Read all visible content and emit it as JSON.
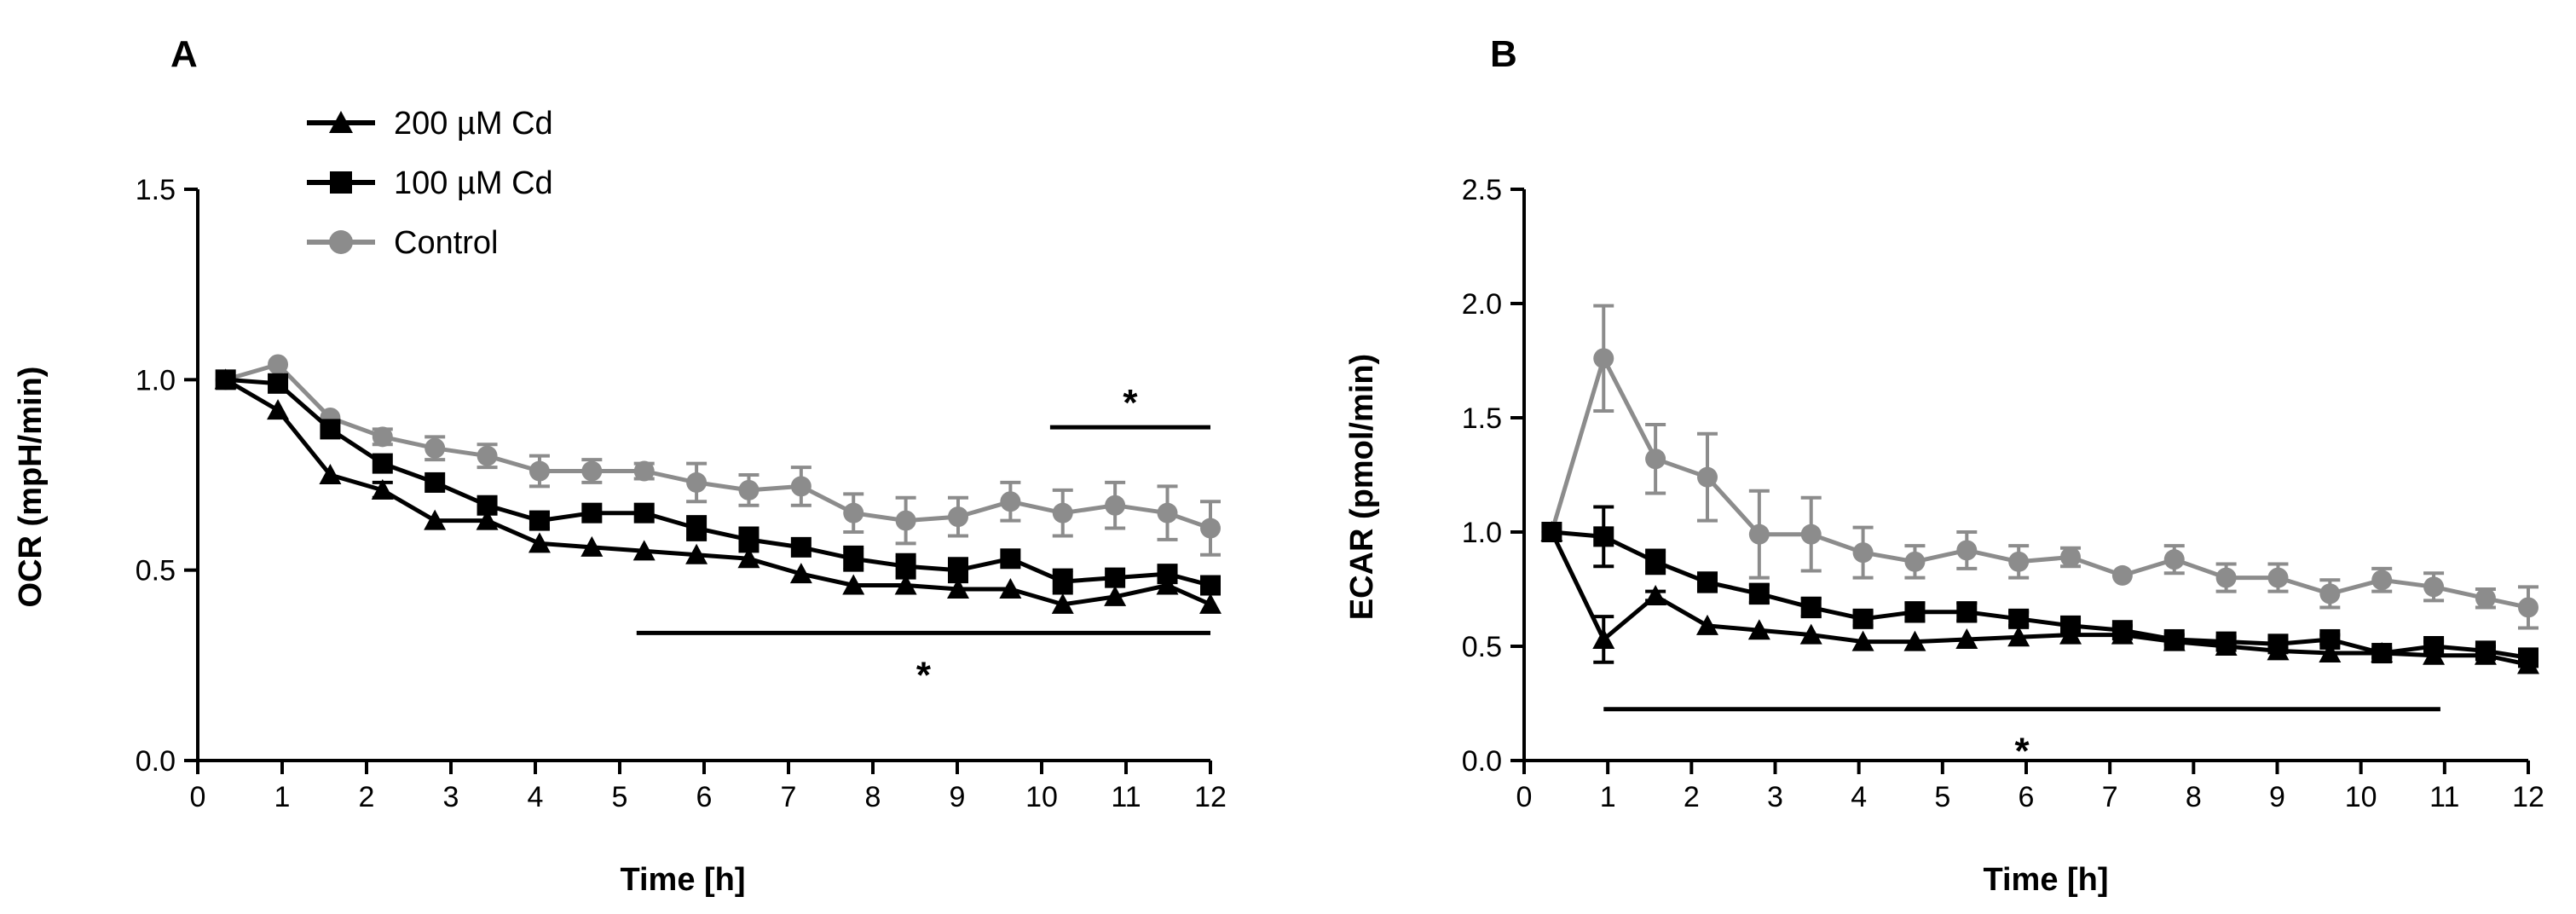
{
  "colors": {
    "cd200": "#000000",
    "cd100": "#000000",
    "control": "#8c8c8c"
  },
  "legend": [
    {
      "label": "200 µM Cd",
      "series": "cd200",
      "marker": "triangle"
    },
    {
      "label": "100 µM Cd",
      "series": "cd100",
      "marker": "square"
    },
    {
      "label": "Control",
      "series": "control",
      "marker": "circle"
    }
  ],
  "chart_data": [
    {
      "type": "line",
      "panel": "A",
      "title": "",
      "xlabel": "Time [h]",
      "ylabel": "OCR (mpH/min)",
      "xlim": [
        0,
        12
      ],
      "ylim": [
        0,
        1.5
      ],
      "xticks": [
        "0",
        "1",
        "2",
        "3",
        "4",
        "5",
        "6",
        "7",
        "8",
        "9",
        "10",
        "11",
        "12"
      ],
      "yticks": [
        "0.0",
        "0.5",
        "1.0",
        "1.5"
      ],
      "x": [
        0.33,
        0.95,
        1.57,
        2.19,
        2.81,
        3.43,
        4.05,
        4.67,
        5.29,
        5.91,
        6.53,
        7.15,
        7.77,
        8.39,
        9.01,
        9.63,
        10.25,
        10.87,
        11.49,
        12.0
      ],
      "series": [
        {
          "name": "200 µM Cd",
          "key": "cd200",
          "values": [
            1.0,
            0.92,
            0.75,
            0.71,
            0.63,
            0.63,
            0.57,
            0.56,
            0.55,
            0.54,
            0.53,
            0.49,
            0.46,
            0.46,
            0.45,
            0.45,
            0.41,
            0.43,
            0.46,
            0.41
          ],
          "errors": [
            0,
            0.01,
            0.01,
            0.02,
            0.01,
            0.01,
            0.01,
            0.01,
            0.01,
            0.01,
            0.01,
            0.01,
            0.01,
            0.01,
            0.01,
            0.01,
            0.01,
            0.01,
            0.01,
            0.01
          ]
        },
        {
          "name": "100 µM Cd",
          "key": "cd100",
          "values": [
            1.0,
            0.99,
            0.87,
            0.78,
            0.73,
            0.67,
            0.63,
            0.65,
            0.65,
            0.61,
            0.58,
            0.56,
            0.53,
            0.51,
            0.5,
            0.53,
            0.47,
            0.48,
            0.49,
            0.46
          ],
          "errors": [
            0,
            0.01,
            0.01,
            0.01,
            0.01,
            0.01,
            0.02,
            0.01,
            0.01,
            0.03,
            0.03,
            0.01,
            0.03,
            0.03,
            0.03,
            0.01,
            0.03,
            0.01,
            0.01,
            0.01
          ]
        },
        {
          "name": "Control",
          "key": "control",
          "values": [
            1.0,
            1.04,
            0.9,
            0.85,
            0.82,
            0.8,
            0.76,
            0.76,
            0.76,
            0.73,
            0.71,
            0.72,
            0.65,
            0.63,
            0.64,
            0.68,
            0.65,
            0.67,
            0.65,
            0.61
          ],
          "errors": [
            0,
            0.01,
            0.01,
            0.02,
            0.03,
            0.03,
            0.04,
            0.03,
            0.02,
            0.05,
            0.04,
            0.05,
            0.05,
            0.06,
            0.05,
            0.05,
            0.06,
            0.06,
            0.07,
            0.07
          ]
        }
      ],
      "significance": [
        {
          "label": "*",
          "x1": 10.1,
          "x2": 12.0,
          "y": 0.875
        },
        {
          "label": "*",
          "x1": 5.2,
          "x2": 12.0,
          "y": 0.335
        }
      ]
    },
    {
      "type": "line",
      "panel": "B",
      "title": "",
      "xlabel": "Time [h]",
      "ylabel": "ECAR (pmol/min)",
      "xlim": [
        0,
        12
      ],
      "ylim": [
        0,
        2.5
      ],
      "xticks": [
        "0",
        "1",
        "2",
        "3",
        "4",
        "5",
        "6",
        "7",
        "8",
        "9",
        "10",
        "11",
        "12"
      ],
      "yticks": [
        "0.0",
        "0.5",
        "1.0",
        "1.5",
        "2.0",
        "2.5"
      ],
      "x": [
        0.33,
        0.95,
        1.57,
        2.19,
        2.81,
        3.43,
        4.05,
        4.67,
        5.29,
        5.91,
        6.53,
        7.15,
        7.77,
        8.39,
        9.01,
        9.63,
        10.25,
        10.87,
        11.49,
        12.0
      ],
      "series": [
        {
          "name": "200 µM Cd",
          "key": "cd200",
          "values": [
            1.0,
            0.53,
            0.72,
            0.59,
            0.57,
            0.55,
            0.52,
            0.52,
            0.53,
            0.54,
            0.55,
            0.55,
            0.52,
            0.5,
            0.48,
            0.47,
            0.47,
            0.46,
            0.46,
            0.42
          ],
          "errors": [
            0,
            0.1,
            0.02,
            0.01,
            0.01,
            0.01,
            0.01,
            0.01,
            0.01,
            0.01,
            0.01,
            0.01,
            0.01,
            0.01,
            0.01,
            0.01,
            0.01,
            0.01,
            0.01,
            0.01
          ]
        },
        {
          "name": "100 µM Cd",
          "key": "cd100",
          "values": [
            1.0,
            0.98,
            0.87,
            0.78,
            0.73,
            0.67,
            0.62,
            0.65,
            0.65,
            0.62,
            0.59,
            0.57,
            0.53,
            0.52,
            0.51,
            0.53,
            0.47,
            0.5,
            0.48,
            0.45
          ],
          "errors": [
            0,
            0.13,
            0.05,
            0.04,
            0.04,
            0.04,
            0.03,
            0.04,
            0.04,
            0.03,
            0.03,
            0.02,
            0.02,
            0.02,
            0.02,
            0.02,
            0.02,
            0.02,
            0.02,
            0.02
          ]
        },
        {
          "name": "Control",
          "key": "control",
          "values": [
            1.0,
            1.76,
            1.32,
            1.24,
            0.99,
            0.99,
            0.91,
            0.87,
            0.92,
            0.87,
            0.89,
            0.81,
            0.88,
            0.8,
            0.8,
            0.73,
            0.79,
            0.76,
            0.71,
            0.67
          ],
          "errors": [
            0,
            0.23,
            0.15,
            0.19,
            0.19,
            0.16,
            0.11,
            0.07,
            0.08,
            0.07,
            0.04,
            0.01,
            0.06,
            0.06,
            0.06,
            0.06,
            0.05,
            0.06,
            0.04,
            0.09
          ]
        }
      ],
      "significance": [
        {
          "label": "*",
          "x1": 0.95,
          "x2": 10.95,
          "y": 0.225
        }
      ]
    }
  ]
}
